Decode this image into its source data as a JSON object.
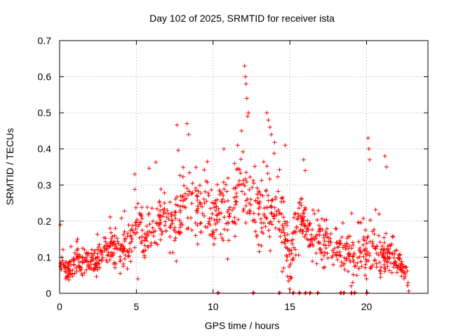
{
  "chart_data": {
    "type": "scatter",
    "title": "Day 102 of 2025, SRMTID for receiver ista",
    "xlabel": "GPS time / hours",
    "ylabel": "SRMTID / TECUs",
    "xlim": [
      0,
      24
    ],
    "ylim": [
      0,
      0.7
    ],
    "xticks": [
      0,
      5,
      10,
      15,
      20
    ],
    "xtick_labels": [
      "0",
      "5",
      "10",
      "15",
      "20"
    ],
    "yticks": [
      0,
      0.1,
      0.2,
      0.3,
      0.4,
      0.5,
      0.6,
      0.7
    ],
    "ytick_labels": [
      "0",
      "0.1",
      "0.2",
      "0.3",
      "0.4",
      "0.5",
      "0.6",
      "0.7"
    ],
    "grid": true,
    "marker": "+",
    "series_color": "#ff0000",
    "series": [
      {
        "name": "SRMTID",
        "approximate_trend": [
          {
            "x": 0.0,
            "y": 0.09
          },
          {
            "x": 0.5,
            "y": 0.07
          },
          {
            "x": 1.0,
            "y": 0.08
          },
          {
            "x": 1.5,
            "y": 0.09
          },
          {
            "x": 2.0,
            "y": 0.08
          },
          {
            "x": 2.5,
            "y": 0.09
          },
          {
            "x": 3.0,
            "y": 0.13
          },
          {
            "x": 3.5,
            "y": 0.13
          },
          {
            "x": 4.0,
            "y": 0.11
          },
          {
            "x": 4.5,
            "y": 0.14
          },
          {
            "x": 5.0,
            "y": 0.19
          },
          {
            "x": 5.5,
            "y": 0.16
          },
          {
            "x": 6.0,
            "y": 0.18
          },
          {
            "x": 6.5,
            "y": 0.2
          },
          {
            "x": 7.0,
            "y": 0.19
          },
          {
            "x": 7.5,
            "y": 0.19
          },
          {
            "x": 8.0,
            "y": 0.25
          },
          {
            "x": 8.5,
            "y": 0.27
          },
          {
            "x": 9.0,
            "y": 0.23
          },
          {
            "x": 9.5,
            "y": 0.24
          },
          {
            "x": 10.0,
            "y": 0.21
          },
          {
            "x": 10.5,
            "y": 0.24
          },
          {
            "x": 11.0,
            "y": 0.22
          },
          {
            "x": 11.5,
            "y": 0.27
          },
          {
            "x": 12.0,
            "y": 0.31
          },
          {
            "x": 12.5,
            "y": 0.25
          },
          {
            "x": 13.0,
            "y": 0.22
          },
          {
            "x": 13.5,
            "y": 0.22
          },
          {
            "x": 14.0,
            "y": 0.23
          },
          {
            "x": 14.5,
            "y": 0.22
          },
          {
            "x": 15.0,
            "y": 0.08
          },
          {
            "x": 15.5,
            "y": 0.19
          },
          {
            "x": 16.0,
            "y": 0.2
          },
          {
            "x": 16.5,
            "y": 0.15
          },
          {
            "x": 17.0,
            "y": 0.15
          },
          {
            "x": 17.5,
            "y": 0.13
          },
          {
            "x": 18.0,
            "y": 0.13
          },
          {
            "x": 18.5,
            "y": 0.12
          },
          {
            "x": 19.0,
            "y": 0.11
          },
          {
            "x": 19.5,
            "y": 0.11
          },
          {
            "x": 20.0,
            "y": 0.12
          },
          {
            "x": 20.5,
            "y": 0.11
          },
          {
            "x": 21.0,
            "y": 0.1
          },
          {
            "x": 21.5,
            "y": 0.1
          },
          {
            "x": 22.0,
            "y": 0.09
          },
          {
            "x": 22.5,
            "y": 0.06
          },
          {
            "x": 22.8,
            "y": 0.01
          }
        ],
        "spread": [
          {
            "x": 0,
            "y": 0.03
          },
          {
            "x": 3,
            "y": 0.04
          },
          {
            "x": 5,
            "y": 0.06
          },
          {
            "x": 8,
            "y": 0.08
          },
          {
            "x": 11,
            "y": 0.09
          },
          {
            "x": 13,
            "y": 0.09
          },
          {
            "x": 15,
            "y": 0.07
          },
          {
            "x": 18,
            "y": 0.05
          },
          {
            "x": 21,
            "y": 0.05
          },
          {
            "x": 23,
            "y": 0.02
          }
        ],
        "excursions": [
          {
            "x": 0.05,
            "y": 0.19
          },
          {
            "x": 4.9,
            "y": 0.33
          },
          {
            "x": 5.1,
            "y": 0.04
          },
          {
            "x": 8.3,
            "y": 0.47
          },
          {
            "x": 8.4,
            "y": 0.44
          },
          {
            "x": 10.7,
            "y": 0.4
          },
          {
            "x": 11.6,
            "y": 0.41
          },
          {
            "x": 11.85,
            "y": 0.45
          },
          {
            "x": 12.05,
            "y": 0.63
          },
          {
            "x": 12.1,
            "y": 0.6
          },
          {
            "x": 12.15,
            "y": 0.58
          },
          {
            "x": 12.2,
            "y": 0.54
          },
          {
            "x": 12.25,
            "y": 0.49
          },
          {
            "x": 12.3,
            "y": 0.5
          },
          {
            "x": 13.5,
            "y": 0.5
          },
          {
            "x": 13.6,
            "y": 0.48
          },
          {
            "x": 13.7,
            "y": 0.46
          },
          {
            "x": 13.8,
            "y": 0.44
          },
          {
            "x": 14.7,
            "y": 0.41
          },
          {
            "x": 15.9,
            "y": 0.37
          },
          {
            "x": 16.0,
            "y": 0.34
          },
          {
            "x": 20.1,
            "y": 0.43
          },
          {
            "x": 20.15,
            "y": 0.4
          },
          {
            "x": 20.2,
            "y": 0.37
          },
          {
            "x": 21.2,
            "y": 0.38
          },
          {
            "x": 21.3,
            "y": 0.35
          },
          {
            "x": 19.0,
            "y": 0.02
          },
          {
            "x": 19.1,
            "y": 0.03
          },
          {
            "x": 19.9,
            "y": 0.05
          },
          {
            "x": 20.0,
            "y": 0.04
          },
          {
            "x": 14.5,
            "y": 0.06
          },
          {
            "x": 14.6,
            "y": 0.07
          }
        ],
        "zero_markers_x": [
          10.3,
          12.6,
          14.3,
          15.2,
          15.6,
          16.0,
          16.3,
          16.8,
          18.3,
          18.5,
          19.0,
          19.2,
          20.0
        ]
      }
    ]
  }
}
